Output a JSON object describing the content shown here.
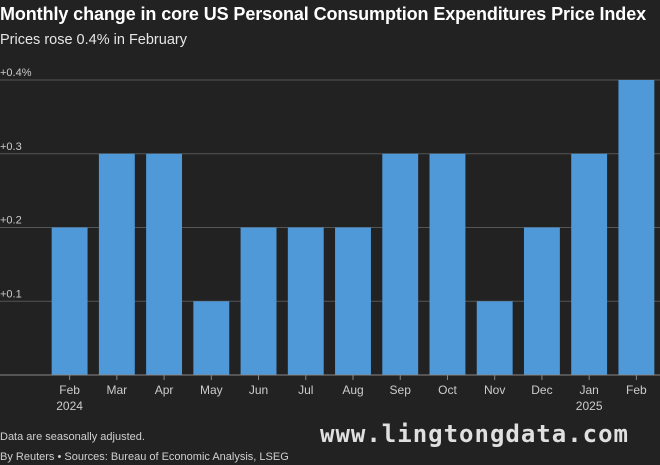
{
  "header": {
    "title": "Monthly change in core US Personal Consumption Expenditures Price Index",
    "subtitle": "Prices rose 0.4% in February"
  },
  "footer": {
    "note": "Data are seasonally adjusted.",
    "source": "By Reuters • Sources: Bureau of Economic Analysis, LSEG",
    "watermark": "www.lingtongdata.com"
  },
  "colors": {
    "background": "#222222",
    "bar": "#4f99d8",
    "grid": "#555555",
    "text": "#ffffff",
    "tick_text": "#cccccc"
  },
  "chart_data": {
    "type": "bar",
    "title": "Monthly change in core US Personal Consumption Expenditures Price Index",
    "subtitle": "Prices rose 0.4% in February",
    "xlabel": "",
    "ylabel": "",
    "categories": [
      "Feb",
      "Mar",
      "Apr",
      "May",
      "Jun",
      "Jul",
      "Aug",
      "Sep",
      "Oct",
      "Nov",
      "Dec",
      "Jan",
      "Feb"
    ],
    "category_sublabels": [
      "2024",
      "",
      "",
      "",
      "",
      "",
      "",
      "",
      "",
      "",
      "",
      "2025",
      ""
    ],
    "values": [
      0.2,
      0.3,
      0.3,
      0.1,
      0.2,
      0.2,
      0.2,
      0.3,
      0.3,
      0.1,
      0.2,
      0.3,
      0.4
    ],
    "ylim": [
      0,
      0.4
    ],
    "yticks": [
      0.1,
      0.2,
      0.3,
      0.4
    ],
    "ytick_labels": [
      "+0.1",
      "+0.2",
      "+0.3",
      "+0.4%"
    ],
    "grid": true,
    "legend": "none"
  }
}
